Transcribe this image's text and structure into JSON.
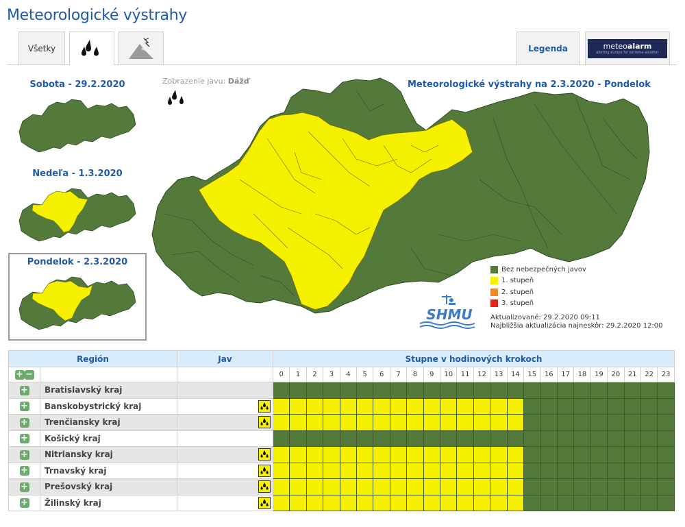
{
  "page": {
    "title": "Meteorologické výstrahy"
  },
  "tabs": {
    "all_label": "Všetky",
    "legend_label": "Legenda",
    "meteoalarm_brand_plain": "meteo",
    "meteoalarm_brand_bold": "alarm",
    "meteoalarm_tagline": "alerting europe for extreme weather"
  },
  "icons": {
    "rain_tab": "rain-icon",
    "storm_tab": "thunderstorm-icon"
  },
  "colors": {
    "green": "#547a3b",
    "yellow": "#f4f000",
    "orange": "#f08a24",
    "red": "#e8231d",
    "title_blue": "#1f5aa6"
  },
  "days": [
    {
      "title": "Sobota - 29.2.2020",
      "map": "all-green"
    },
    {
      "title": "Nedeľa - 1.3.2020",
      "map": "partial-yellow"
    },
    {
      "title": "Pondelok - 2.3.2020",
      "map": "partial-yellow",
      "selected": true
    }
  ],
  "display": {
    "label": "Zobrazenie javu:",
    "value": "Dážď"
  },
  "map": {
    "title": "Meteorologické výstrahy na 2.3.2020 - Pondelok"
  },
  "legend": [
    {
      "label": "Bez nebezpečných javov",
      "color": "#547a3b"
    },
    {
      "label": "1. stupeň",
      "color": "#f4f000"
    },
    {
      "label": "2. stupeň",
      "color": "#f08a24"
    },
    {
      "label": "3. stupeň",
      "color": "#e8231d"
    }
  ],
  "logo": {
    "text": "SHMU"
  },
  "updates": {
    "updated": "Aktualizované: 29.2.2020 09:11",
    "next": "Najbližšia aktualizácia najneskôr: 29.2.2020 12:00"
  },
  "table": {
    "header_region": "Región",
    "header_jav": "Jav",
    "header_hours": "Stupne v hodinových krokoch",
    "hours": [
      "0",
      "1",
      "2",
      "3",
      "4",
      "5",
      "6",
      "7",
      "8",
      "9",
      "10",
      "11",
      "12",
      "13",
      "14",
      "15",
      "16",
      "17",
      "18",
      "19",
      "20",
      "21",
      "22",
      "23"
    ],
    "rows": [
      {
        "name": "Bratislavský kraj",
        "jav": false,
        "yellow_until": -1
      },
      {
        "name": "Banskobystrický kraj",
        "jav": true,
        "yellow_until": 14
      },
      {
        "name": "Trenčiansky kraj",
        "jav": true,
        "yellow_until": 14
      },
      {
        "name": "Košický kraj",
        "jav": false,
        "yellow_until": -1
      },
      {
        "name": "Nitriansky kraj",
        "jav": true,
        "yellow_until": 14
      },
      {
        "name": "Trnavský kraj",
        "jav": true,
        "yellow_until": 14
      },
      {
        "name": "Prešovský kraj",
        "jav": true,
        "yellow_until": 14
      },
      {
        "name": "Žilinský kraj",
        "jav": true,
        "yellow_until": 14
      }
    ]
  }
}
